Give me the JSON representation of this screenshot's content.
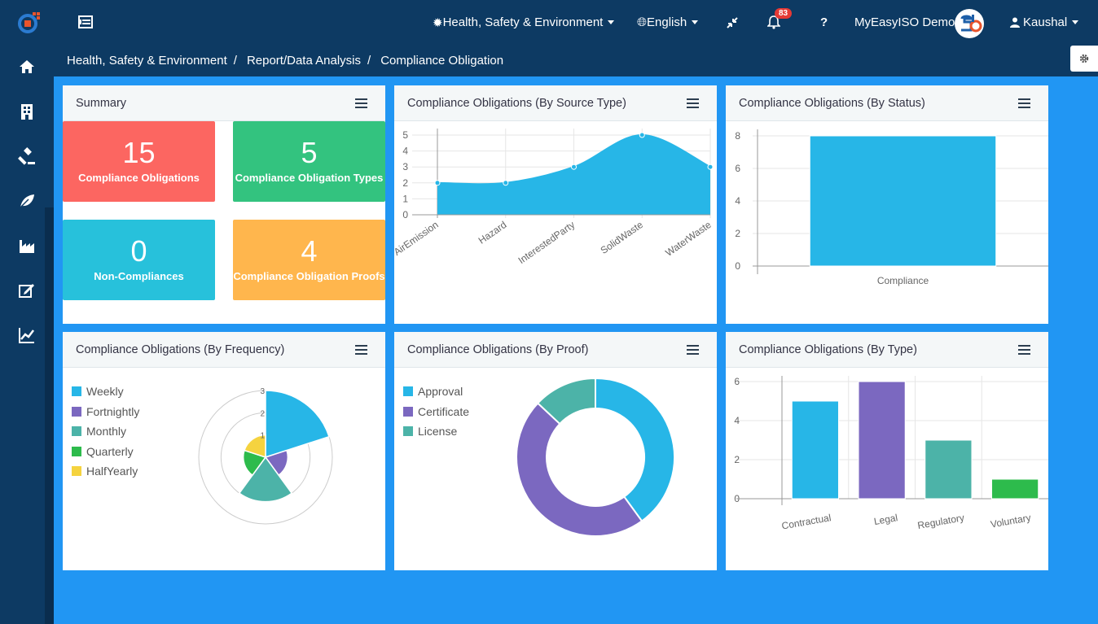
{
  "header": {
    "module_menu_label": "Health, Safety & Environment",
    "language_label": "English",
    "notification_count": "83",
    "help_label": "?",
    "company_name": "MyEasyISO Demo",
    "user_name": "Kaushal"
  },
  "breadcrumb": {
    "items": [
      "Health, Safety & Environment",
      "Report/Data Analysis",
      "Compliance Obligation"
    ],
    "separator": "/"
  },
  "summary": {
    "title": "Summary",
    "tiles": [
      {
        "value": "15",
        "label": "Compliance Obligations",
        "color": "#fc6661"
      },
      {
        "value": "5",
        "label": "Compliance Obligation Types",
        "color": "#33c37f"
      },
      {
        "value": "0",
        "label": "Non-Compliances",
        "color": "#27c1db"
      },
      {
        "value": "4",
        "label": "Compliance Obligation Proofs",
        "color": "#ffb64d"
      }
    ]
  },
  "chart_data": [
    {
      "id": "by_source_type",
      "title": "Compliance Obligations (By Source Type)",
      "type": "area",
      "categories": [
        "AirEmission",
        "Hazard",
        "InterestedParty",
        "SolidWaste",
        "WaterWaste"
      ],
      "values": [
        2,
        2,
        3,
        5,
        3
      ],
      "yticks": [
        0,
        1,
        2,
        3,
        4,
        5
      ],
      "ylim": [
        0,
        5
      ],
      "color": "#27b6e7"
    },
    {
      "id": "by_status",
      "title": "Compliance Obligations (By Status)",
      "type": "bar",
      "categories": [
        "Compliance"
      ],
      "values": [
        8
      ],
      "yticks": [
        0,
        2,
        4,
        6,
        8
      ],
      "ylim": [
        0,
        8
      ],
      "color": "#27b6e7"
    },
    {
      "id": "by_frequency",
      "title": "Compliance Obligations (By Frequency)",
      "type": "pie",
      "subtype": "polar-area",
      "labels": [
        "Weekly",
        "Fortnightly",
        "Monthly",
        "Quarterly",
        "HalfYearly"
      ],
      "values": [
        3,
        1,
        2,
        1,
        1
      ],
      "rmax": 3,
      "ticks": [
        "1",
        "2",
        "3"
      ],
      "colors": [
        "#27b6e7",
        "#7b68c0",
        "#4cb3a8",
        "#2dbb4c",
        "#f5d33f"
      ],
      "legend": "left"
    },
    {
      "id": "by_proof",
      "title": "Compliance Obligations (By Proof)",
      "type": "pie",
      "subtype": "doughnut",
      "labels": [
        "Approval",
        "Certificate",
        "License"
      ],
      "values": [
        40,
        47,
        13
      ],
      "colors": [
        "#27b6e7",
        "#7b68c0",
        "#4cb3a8"
      ],
      "legend": "left"
    },
    {
      "id": "by_type",
      "title": "Compliance Obligations (By Type)",
      "type": "bar",
      "categories": [
        "Contractual",
        "Legal",
        "Regulatory",
        "Voluntary"
      ],
      "values": [
        5,
        6,
        3,
        1
      ],
      "yticks": [
        0,
        2,
        4,
        6
      ],
      "ylim": [
        0,
        6
      ],
      "colors": [
        "#27b6e7",
        "#7b68c0",
        "#4cb3a8",
        "#2dbb4c"
      ]
    }
  ],
  "colors": {
    "topbar": "#0d3a63",
    "background": "#2196f3"
  }
}
